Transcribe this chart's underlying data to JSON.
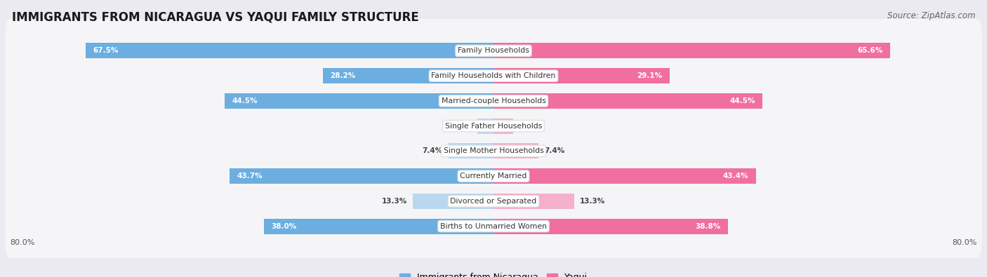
{
  "title": "IMMIGRANTS FROM NICARAGUA VS YAQUI FAMILY STRUCTURE",
  "source": "Source: ZipAtlas.com",
  "categories": [
    "Family Households",
    "Family Households with Children",
    "Married-couple Households",
    "Single Father Households",
    "Single Mother Households",
    "Currently Married",
    "Divorced or Separated",
    "Births to Unmarried Women"
  ],
  "nicaragua_values": [
    67.5,
    28.2,
    44.5,
    2.7,
    7.4,
    43.7,
    13.3,
    38.0
  ],
  "yaqui_values": [
    65.6,
    29.1,
    44.5,
    3.2,
    7.4,
    43.4,
    13.3,
    38.8
  ],
  "nicaragua_color": "#6daee0",
  "yaqui_color": "#f06fa0",
  "nicaragua_color_light": "#b8d8ef",
  "yaqui_color_light": "#f5b0cb",
  "axis_max": 80,
  "background_color": "#eaeaf0",
  "row_bg_color": "#f5f5f8",
  "row_bg_alt": "#ebebf2",
  "label_nicaragua": "Immigrants from Nicaragua",
  "label_yaqui": "Yaqui",
  "title_fontsize": 12,
  "source_fontsize": 8.5,
  "bar_height": 0.62,
  "threshold": 15.0
}
